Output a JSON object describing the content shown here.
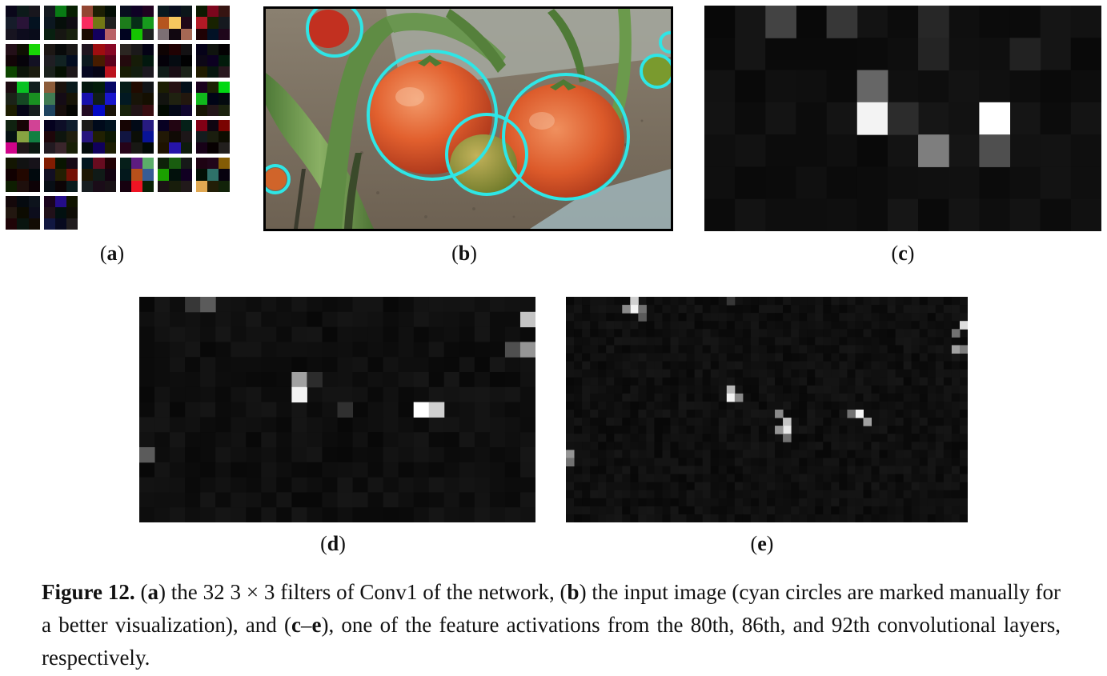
{
  "subfigures": {
    "a": "a",
    "b": "b",
    "c": "c",
    "d": "d",
    "e": "e"
  },
  "caption": {
    "figure_label": "Figure 12.",
    "segments": [
      {
        "text": " (",
        "bold": false
      },
      {
        "text": "a",
        "bold": true
      },
      {
        "text": ") the 32 3 × 3 filters of Conv1 of the network, (",
        "bold": false
      },
      {
        "text": "b",
        "bold": true
      },
      {
        "text": ") the input image (cyan circles are marked manually for a better visualization), and (",
        "bold": false
      },
      {
        "text": "c",
        "bold": true
      },
      {
        "text": "–",
        "bold": false
      },
      {
        "text": "e",
        "bold": true
      },
      {
        "text": "), one of the feature activations from the 80th, 86th, and 92th convolutional layers, respectively.",
        "bold": false
      }
    ]
  },
  "filters_count": 32,
  "highlight_color": "#2ee6e6",
  "activation_grids": {
    "c": {
      "cols": 13,
      "rows": 7,
      "bright_cells": [
        [
          2,
          0,
          0.2
        ],
        [
          4,
          0,
          0.15
        ],
        [
          5,
          2,
          0.35
        ],
        [
          5,
          3,
          0.95
        ],
        [
          9,
          3,
          1.0
        ],
        [
          7,
          4,
          0.45
        ],
        [
          9,
          4,
          0.25
        ],
        [
          7,
          0,
          0.08
        ],
        [
          7,
          1,
          0.07
        ],
        [
          10,
          1,
          0.06
        ],
        [
          6,
          3,
          0.1
        ]
      ]
    },
    "d": {
      "cols": 26,
      "rows": 15,
      "bright_cells": [
        [
          3,
          0,
          0.15
        ],
        [
          4,
          0,
          0.3
        ],
        [
          25,
          1,
          0.75
        ],
        [
          24,
          3,
          0.25
        ],
        [
          25,
          3,
          0.55
        ],
        [
          10,
          5,
          0.6
        ],
        [
          10,
          6,
          0.95
        ],
        [
          11,
          5,
          0.1
        ],
        [
          18,
          7,
          1.0
        ],
        [
          19,
          7,
          0.8
        ],
        [
          13,
          7,
          0.12
        ],
        [
          0,
          10,
          0.3
        ]
      ]
    },
    "e": {
      "cols": 50,
      "rows": 28,
      "bright_cells": [
        [
          8,
          0,
          0.8
        ],
        [
          8,
          1,
          0.95
        ],
        [
          7,
          1,
          0.5
        ],
        [
          9,
          1,
          0.4
        ],
        [
          49,
          3,
          0.85
        ],
        [
          48,
          4,
          0.4
        ],
        [
          48,
          6,
          0.6
        ],
        [
          49,
          6,
          0.45
        ],
        [
          20,
          11,
          0.7
        ],
        [
          20,
          12,
          0.95
        ],
        [
          21,
          12,
          0.5
        ],
        [
          26,
          14,
          0.5
        ],
        [
          27,
          15,
          0.75
        ],
        [
          27,
          16,
          0.9
        ],
        [
          26,
          16,
          0.55
        ],
        [
          27,
          17,
          0.4
        ],
        [
          36,
          14,
          0.95
        ],
        [
          37,
          15,
          0.6
        ],
        [
          35,
          14,
          0.4
        ],
        [
          0,
          19,
          0.55
        ],
        [
          0,
          20,
          0.4
        ],
        [
          20,
          0,
          0.15
        ],
        [
          9,
          2,
          0.3
        ]
      ]
    }
  }
}
